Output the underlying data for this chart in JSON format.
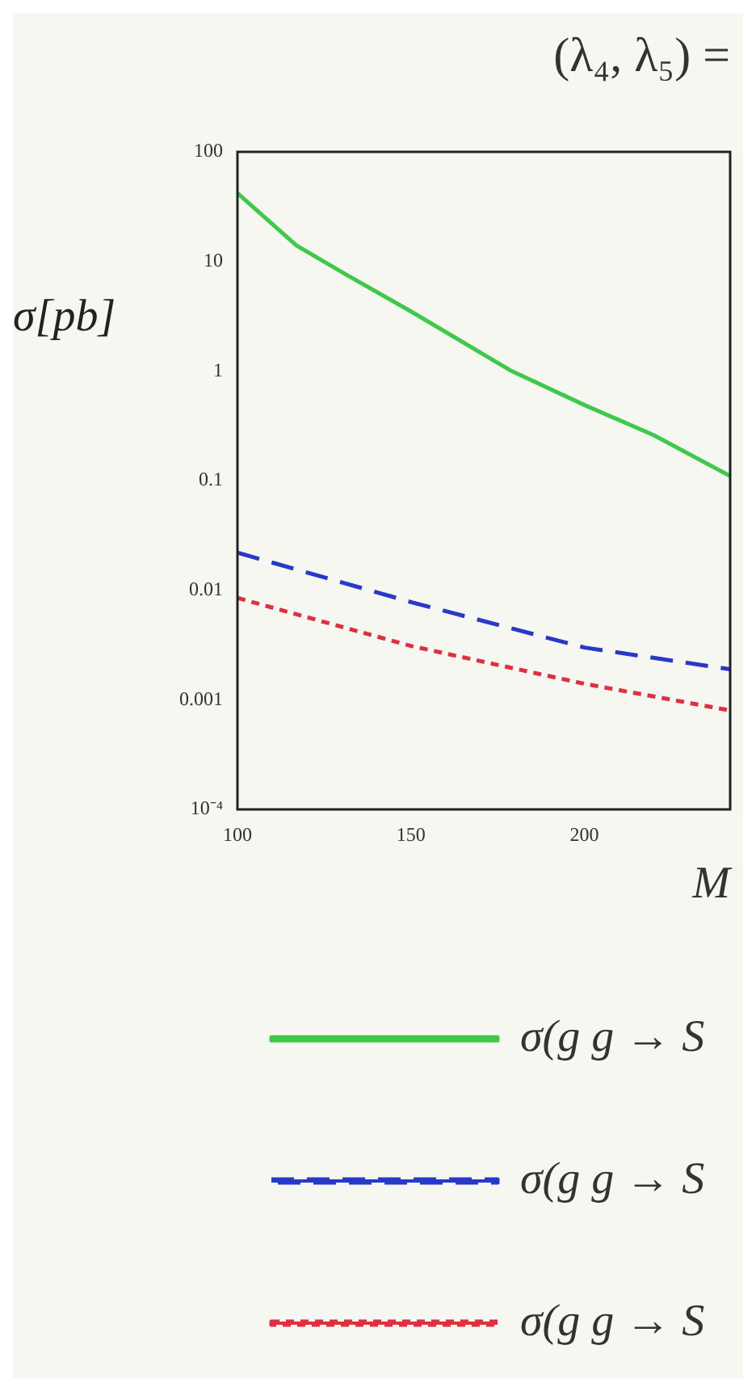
{
  "chart_data": {
    "type": "line",
    "title": "(λ₄, λ₅) =",
    "xlabel": "M",
    "ylabel": "σ[pb]",
    "xlim": [
      100,
      242
    ],
    "xticks": [
      100,
      150,
      200
    ],
    "ylim": [
      0.0001,
      100
    ],
    "yticks": [
      {
        "value": 0.0001,
        "label": "10⁻⁴"
      },
      0.001,
      0.01,
      0.1,
      1,
      10,
      100
    ],
    "log": "y",
    "grid": false,
    "legend": "bottom",
    "marker": "none",
    "series": [
      {
        "name": "σ(g g → S",
        "color": "#3fc94a",
        "line_style": "solid",
        "x": [
          100,
          117,
          131,
          150,
          179,
          200,
          220,
          242
        ],
        "values": [
          42,
          14,
          7.7,
          3.5,
          1.0,
          0.49,
          0.26,
          0.11
        ]
      },
      {
        "name": "σ(g g → S",
        "color": "#2838c8",
        "line_style": "dashed",
        "x": [
          100,
          150,
          200,
          242
        ],
        "values": [
          0.022,
          0.0078,
          0.003,
          0.0019
        ]
      },
      {
        "name": "σ(g g → S",
        "color": "#e03040",
        "line_style": "dotted",
        "x": [
          100,
          150,
          200,
          242
        ],
        "values": [
          0.0085,
          0.0031,
          0.0014,
          0.0008
        ]
      }
    ]
  }
}
